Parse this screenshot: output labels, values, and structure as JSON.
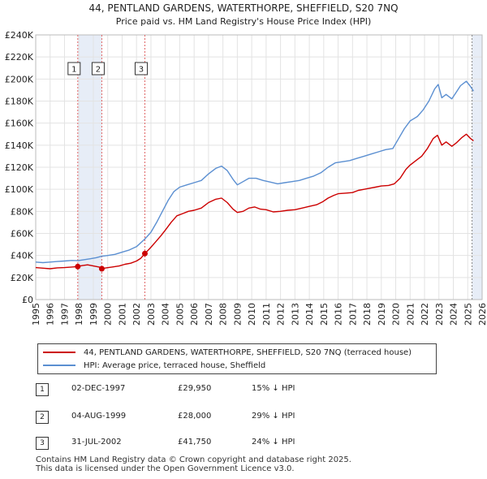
{
  "chart_data": {
    "type": "line",
    "title": "44, PENTLAND GARDENS, WATERTHORPE, SHEFFIELD, S20 7NQ",
    "subtitle": "Price paid vs. HM Land Registry's House Price Index (HPI)",
    "xlim": [
      1995,
      2026
    ],
    "ylim": [
      0,
      240000
    ],
    "x_ticks": [
      "1995",
      "1996",
      "1997",
      "1998",
      "1999",
      "2000",
      "2001",
      "2002",
      "2003",
      "2004",
      "2005",
      "2006",
      "2007",
      "2008",
      "2009",
      "2010",
      "2011",
      "2012",
      "2013",
      "2014",
      "2015",
      "2016",
      "2017",
      "2018",
      "2019",
      "2020",
      "2021",
      "2022",
      "2023",
      "2024",
      "2025",
      "2026"
    ],
    "y_ticks": [
      {
        "value": 0,
        "label": "£0"
      },
      {
        "value": 20000,
        "label": "£20K"
      },
      {
        "value": 40000,
        "label": "£40K"
      },
      {
        "value": 60000,
        "label": "£60K"
      },
      {
        "value": 80000,
        "label": "£80K"
      },
      {
        "value": 100000,
        "label": "£100K"
      },
      {
        "value": 120000,
        "label": "£120K"
      },
      {
        "value": 140000,
        "label": "£140K"
      },
      {
        "value": 160000,
        "label": "£160K"
      },
      {
        "value": 180000,
        "label": "£180K"
      },
      {
        "value": 200000,
        "label": "£200K"
      },
      {
        "value": 220000,
        "label": "£220K"
      },
      {
        "value": 240000,
        "label": "£240K"
      }
    ],
    "grid": true,
    "series": [
      {
        "name": "44, PENTLAND GARDENS, WATERTHORPE, SHEFFIELD, S20 7NQ (terraced house)",
        "color": "#cc0000",
        "points": [
          [
            1995.0,
            29000
          ],
          [
            1995.5,
            28500
          ],
          [
            1996.0,
            28000
          ],
          [
            1996.5,
            28800
          ],
          [
            1997.0,
            29000
          ],
          [
            1997.5,
            29500
          ],
          [
            1997.92,
            29950
          ],
          [
            1998.2,
            30800
          ],
          [
            1998.6,
            31500
          ],
          [
            1999.0,
            30500
          ],
          [
            1999.4,
            29500
          ],
          [
            1999.59,
            28000
          ],
          [
            1999.9,
            28800
          ],
          [
            2000.3,
            29500
          ],
          [
            2000.8,
            30500
          ],
          [
            2001.2,
            32000
          ],
          [
            2001.6,
            33000
          ],
          [
            2002.0,
            35000
          ],
          [
            2002.3,
            37500
          ],
          [
            2002.58,
            41750
          ],
          [
            2002.9,
            46000
          ],
          [
            2003.3,
            52000
          ],
          [
            2003.7,
            58000
          ],
          [
            2004.0,
            63000
          ],
          [
            2004.4,
            70000
          ],
          [
            2004.8,
            76000
          ],
          [
            2005.2,
            78000
          ],
          [
            2005.6,
            80000
          ],
          [
            2006.0,
            81000
          ],
          [
            2006.5,
            83000
          ],
          [
            2007.0,
            88000
          ],
          [
            2007.5,
            91000
          ],
          [
            2007.9,
            92000
          ],
          [
            2008.3,
            88000
          ],
          [
            2008.7,
            82000
          ],
          [
            2009.0,
            79000
          ],
          [
            2009.4,
            80000
          ],
          [
            2009.8,
            83000
          ],
          [
            2010.2,
            84000
          ],
          [
            2010.6,
            82000
          ],
          [
            2011.0,
            81500
          ],
          [
            2011.5,
            79500
          ],
          [
            2012.0,
            80000
          ],
          [
            2012.5,
            81000
          ],
          [
            2013.0,
            81500
          ],
          [
            2013.5,
            83000
          ],
          [
            2014.0,
            84500
          ],
          [
            2014.5,
            86000
          ],
          [
            2014.9,
            88500
          ],
          [
            2015.3,
            92000
          ],
          [
            2015.7,
            94500
          ],
          [
            2016.0,
            96000
          ],
          [
            2016.5,
            96500
          ],
          [
            2017.0,
            97000
          ],
          [
            2017.4,
            99000
          ],
          [
            2017.8,
            100000
          ],
          [
            2018.2,
            101000
          ],
          [
            2018.6,
            102000
          ],
          [
            2019.0,
            103000
          ],
          [
            2019.5,
            103500
          ],
          [
            2019.9,
            105000
          ],
          [
            2020.3,
            110000
          ],
          [
            2020.7,
            118000
          ],
          [
            2021.0,
            122000
          ],
          [
            2021.4,
            126000
          ],
          [
            2021.8,
            130000
          ],
          [
            2022.2,
            137000
          ],
          [
            2022.6,
            146000
          ],
          [
            2022.9,
            149000
          ],
          [
            2023.2,
            140000
          ],
          [
            2023.5,
            143000
          ],
          [
            2023.9,
            139000
          ],
          [
            2024.2,
            142000
          ],
          [
            2024.6,
            147000
          ],
          [
            2024.9,
            150000
          ],
          [
            2025.2,
            146000
          ],
          [
            2025.4,
            144000
          ]
        ]
      },
      {
        "name": "HPI: Average price, terraced house, Sheffield",
        "color": "#5b8fd1",
        "points": [
          [
            1995.0,
            34000
          ],
          [
            1995.5,
            33500
          ],
          [
            1996.0,
            34000
          ],
          [
            1996.5,
            34500
          ],
          [
            1997.0,
            35000
          ],
          [
            1997.5,
            35500
          ],
          [
            1997.92,
            35300
          ],
          [
            1998.3,
            36000
          ],
          [
            1998.8,
            37000
          ],
          [
            1999.2,
            38000
          ],
          [
            1999.59,
            39300
          ],
          [
            2000.0,
            40000
          ],
          [
            2000.5,
            41000
          ],
          [
            2001.0,
            43000
          ],
          [
            2001.5,
            45000
          ],
          [
            2002.0,
            48000
          ],
          [
            2002.58,
            54900
          ],
          [
            2003.0,
            61000
          ],
          [
            2003.4,
            70000
          ],
          [
            2003.8,
            80000
          ],
          [
            2004.2,
            90000
          ],
          [
            2004.6,
            98000
          ],
          [
            2005.0,
            102000
          ],
          [
            2005.5,
            104000
          ],
          [
            2006.0,
            106000
          ],
          [
            2006.5,
            108000
          ],
          [
            2007.0,
            114000
          ],
          [
            2007.5,
            119000
          ],
          [
            2007.9,
            121000
          ],
          [
            2008.3,
            117000
          ],
          [
            2008.7,
            109000
          ],
          [
            2009.0,
            104000
          ],
          [
            2009.4,
            107000
          ],
          [
            2009.8,
            110000
          ],
          [
            2010.3,
            110000
          ],
          [
            2010.8,
            108000
          ],
          [
            2011.3,
            106500
          ],
          [
            2011.8,
            105000
          ],
          [
            2012.3,
            106000
          ],
          [
            2012.8,
            107000
          ],
          [
            2013.3,
            108000
          ],
          [
            2013.8,
            110000
          ],
          [
            2014.3,
            112000
          ],
          [
            2014.8,
            115000
          ],
          [
            2015.3,
            120000
          ],
          [
            2015.8,
            124000
          ],
          [
            2016.3,
            125000
          ],
          [
            2016.8,
            126000
          ],
          [
            2017.3,
            128000
          ],
          [
            2017.8,
            130000
          ],
          [
            2018.3,
            132000
          ],
          [
            2018.8,
            134000
          ],
          [
            2019.3,
            136000
          ],
          [
            2019.8,
            137000
          ],
          [
            2020.2,
            146000
          ],
          [
            2020.6,
            155000
          ],
          [
            2021.0,
            162000
          ],
          [
            2021.5,
            166000
          ],
          [
            2021.9,
            172000
          ],
          [
            2022.3,
            180000
          ],
          [
            2022.7,
            191000
          ],
          [
            2022.95,
            195000
          ],
          [
            2023.2,
            183000
          ],
          [
            2023.5,
            186000
          ],
          [
            2023.9,
            182000
          ],
          [
            2024.2,
            188000
          ],
          [
            2024.5,
            194000
          ],
          [
            2024.9,
            198000
          ],
          [
            2025.15,
            194000
          ],
          [
            2025.4,
            189000
          ]
        ]
      }
    ],
    "transactions": [
      {
        "label": "1",
        "date": "02-DEC-1997",
        "x": 1997.92,
        "price": 29950,
        "price_text": "£29,950",
        "hpi_text": "15% ↓ HPI"
      },
      {
        "label": "2",
        "date": "04-AUG-1999",
        "x": 1999.59,
        "price": 28000,
        "price_text": "£28,000",
        "hpi_text": "29% ↓ HPI"
      },
      {
        "label": "3",
        "date": "31-JUL-2002",
        "x": 2002.58,
        "price": 41750,
        "price_text": "£41,750",
        "hpi_text": "24% ↓ HPI"
      }
    ],
    "shaded_periods": [
      [
        1997.92,
        1999.59
      ],
      [
        2025.3,
        2026
      ]
    ],
    "legend_position": "below"
  },
  "footer": {
    "line1": "Contains HM Land Registry data © Crown copyright and database right 2025.",
    "line2": "This data is licensed under the Open Government Licence v3.0."
  }
}
